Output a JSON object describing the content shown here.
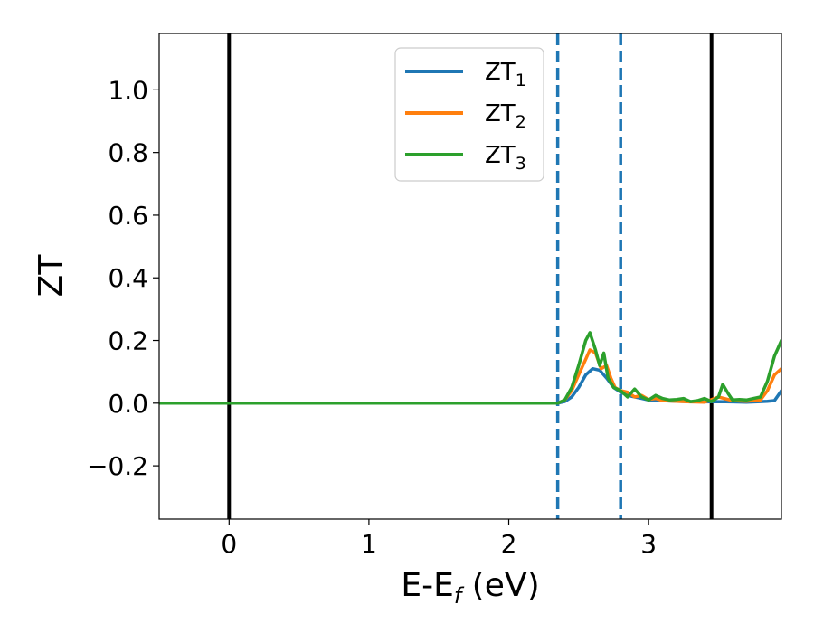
{
  "chart_data": {
    "type": "line",
    "title": "",
    "xlabel": {
      "main": "E-E",
      "sub": "f",
      "unit": " (eV)"
    },
    "ylabel": "ZT",
    "xlim": [
      -0.5,
      3.95
    ],
    "ylim": [
      -0.37,
      1.18
    ],
    "xticks": [
      {
        "value": 0,
        "label": "0"
      },
      {
        "value": 1,
        "label": "1"
      },
      {
        "value": 2,
        "label": "2"
      },
      {
        "value": 3,
        "label": "3"
      }
    ],
    "yticks": [
      {
        "value": -0.2,
        "label": "−0.2"
      },
      {
        "value": 0.0,
        "label": "0.0"
      },
      {
        "value": 0.2,
        "label": "0.2"
      },
      {
        "value": 0.4,
        "label": "0.4"
      },
      {
        "value": 0.6,
        "label": "0.6"
      },
      {
        "value": 0.8,
        "label": "0.8"
      },
      {
        "value": 1.0,
        "label": "1.0"
      }
    ],
    "grid": false,
    "legend_position": "top-center",
    "vertical_lines": [
      {
        "x": 0.0,
        "color": "#000000",
        "style": "solid"
      },
      {
        "x": 2.35,
        "color": "#1f77b4",
        "style": "dashed"
      },
      {
        "x": 2.8,
        "color": "#1f77b4",
        "style": "dashed"
      },
      {
        "x": 3.45,
        "color": "#000000",
        "style": "solid"
      }
    ],
    "series": [
      {
        "name": "ZT",
        "name_sub": "1",
        "color": "#1f77b4",
        "x": [
          -0.5,
          2.35,
          2.4,
          2.45,
          2.5,
          2.55,
          2.6,
          2.65,
          2.7,
          2.75,
          2.8,
          2.85,
          2.9,
          2.95,
          3.0,
          3.1,
          3.2,
          3.3,
          3.4,
          3.5,
          3.6,
          3.7,
          3.8,
          3.85,
          3.9,
          3.95
        ],
        "y": [
          0.0,
          0.0,
          0.005,
          0.02,
          0.05,
          0.09,
          0.11,
          0.105,
          0.08,
          0.05,
          0.035,
          0.025,
          0.02,
          0.015,
          0.01,
          0.008,
          0.006,
          0.005,
          0.004,
          0.005,
          0.004,
          0.003,
          0.005,
          0.006,
          0.008,
          0.04
        ]
      },
      {
        "name": "ZT",
        "name_sub": "2",
        "color": "#ff7f0e",
        "x": [
          -0.5,
          2.35,
          2.4,
          2.45,
          2.5,
          2.55,
          2.58,
          2.62,
          2.66,
          2.7,
          2.73,
          2.76,
          2.8,
          2.85,
          2.9,
          2.95,
          3.0,
          3.05,
          3.1,
          3.2,
          3.3,
          3.4,
          3.5,
          3.6,
          3.7,
          3.8,
          3.85,
          3.9,
          3.95
        ],
        "y": [
          0.0,
          0.0,
          0.01,
          0.04,
          0.09,
          0.14,
          0.17,
          0.16,
          0.11,
          0.12,
          0.08,
          0.05,
          0.04,
          0.035,
          0.02,
          0.025,
          0.012,
          0.015,
          0.008,
          0.006,
          0.004,
          0.003,
          0.02,
          0.008,
          0.006,
          0.01,
          0.04,
          0.09,
          0.11
        ]
      },
      {
        "name": "ZT",
        "name_sub": "3",
        "color": "#2ca02c",
        "x": [
          -0.5,
          2.35,
          2.4,
          2.45,
          2.5,
          2.55,
          2.58,
          2.62,
          2.65,
          2.68,
          2.71,
          2.75,
          2.8,
          2.85,
          2.9,
          2.95,
          3.0,
          3.05,
          3.1,
          3.15,
          3.2,
          3.25,
          3.3,
          3.35,
          3.4,
          3.45,
          3.5,
          3.53,
          3.57,
          3.6,
          3.65,
          3.7,
          3.75,
          3.8,
          3.85,
          3.9,
          3.95
        ],
        "y": [
          0.0,
          0.0,
          0.01,
          0.05,
          0.12,
          0.2,
          0.225,
          0.17,
          0.12,
          0.16,
          0.08,
          0.05,
          0.04,
          0.02,
          0.045,
          0.02,
          0.01,
          0.025,
          0.015,
          0.01,
          0.012,
          0.015,
          0.005,
          0.008,
          0.015,
          0.005,
          0.02,
          0.06,
          0.03,
          0.01,
          0.012,
          0.01,
          0.015,
          0.02,
          0.07,
          0.15,
          0.2
        ]
      }
    ]
  }
}
